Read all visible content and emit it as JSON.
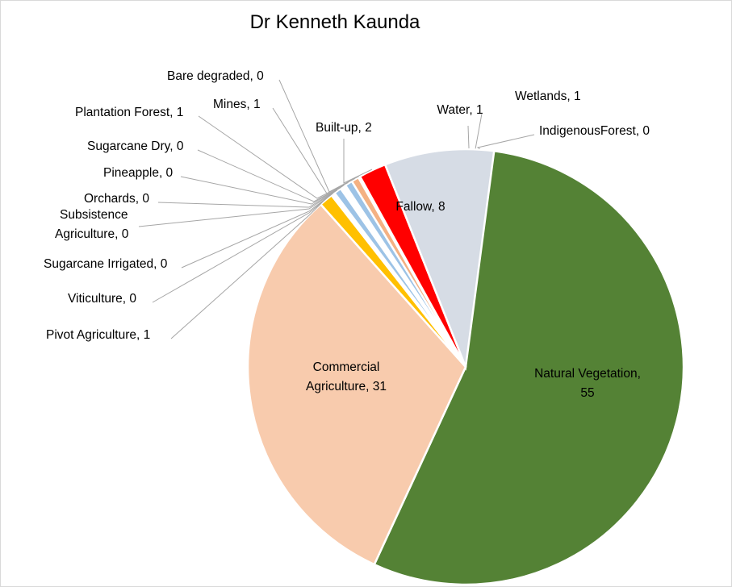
{
  "chart_data": {
    "type": "pie",
    "title": "Dr Kenneth Kaunda",
    "slices": [
      {
        "label": "Water",
        "value": 1,
        "display": "Water, 1",
        "color": "#1f4e79"
      },
      {
        "label": "Wetlands",
        "value": 1,
        "display": "Wetlands, 1",
        "color": "#a9d18e"
      },
      {
        "label": "IndigenousForest",
        "value": 0,
        "display": "IndigenousForest, 0",
        "color": "#c9c9c9"
      },
      {
        "label": "Natural Vegetation",
        "value": 55,
        "display": "Natural Vegetation, 55",
        "color": "#548235"
      },
      {
        "label": "Commercial Agriculture",
        "value": 31,
        "display": "Commercial Agriculture, 31",
        "color": "#f8cbad"
      },
      {
        "label": "Pivot Agriculture",
        "value": 1,
        "display": "Pivot  Agriculture, 1",
        "color": "#ffc000"
      },
      {
        "label": "Viticulture",
        "value": 0,
        "display": "Viticulture, 0",
        "color": "#7030a0"
      },
      {
        "label": "Sugarcane Irrigated",
        "value": 0,
        "display": "Sugarcane Irrigated, 0",
        "color": "#00b0f0"
      },
      {
        "label": "Subsistence Agriculture",
        "value": 0,
        "display": "Subsistence Agriculture, 0",
        "color": "#9dc3e6"
      },
      {
        "label": "Orchards",
        "value": 0,
        "display": "Orchards, 0",
        "color": "#c55a11"
      },
      {
        "label": "Pineapple",
        "value": 0,
        "display": "Pineapple, 0",
        "color": "#ffd966"
      },
      {
        "label": "Sugarcane Dry",
        "value": 0,
        "display": "Sugarcane Dry, 0",
        "color": "#00b050"
      },
      {
        "label": "Plantation Forest",
        "value": 1,
        "display": "Plantation Forest, 1",
        "color": "#9dc3e6"
      },
      {
        "label": "Mines",
        "value": 1,
        "display": "Mines, 1",
        "color": "#f4b183"
      },
      {
        "label": "Bare degraded",
        "value": 0,
        "display": "Bare degraded, 0",
        "color": "#bfbfbf"
      },
      {
        "label": "Built-up",
        "value": 2,
        "display": "Built-up, 2",
        "color": "#ff0000"
      },
      {
        "label": "Fallow",
        "value": 8,
        "display": "Fallow, 8",
        "color": "#d6dce5"
      }
    ]
  }
}
